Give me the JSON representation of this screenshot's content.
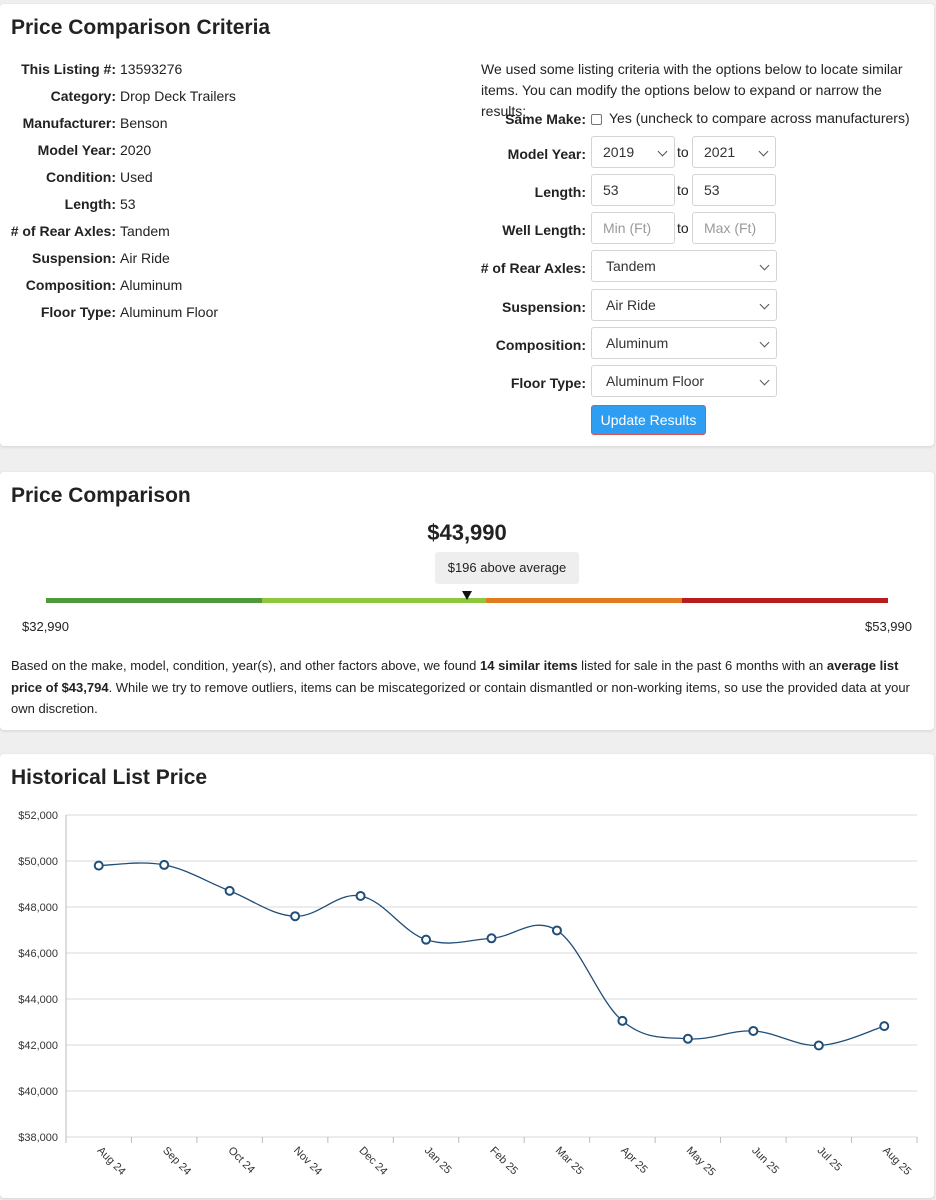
{
  "criteria": {
    "title": "Price Comparison Criteria",
    "specs": [
      {
        "key": "This Listing #:",
        "value": "13593276"
      },
      {
        "key": "Category:",
        "value": "Drop Deck Trailers"
      },
      {
        "key": "Manufacturer:",
        "value": "Benson"
      },
      {
        "key": "Model Year:",
        "value": "2020"
      },
      {
        "key": "Condition:",
        "value": "Used"
      },
      {
        "key": "Length:",
        "value": "53"
      },
      {
        "key": "# of Rear Axles:",
        "value": "Tandem"
      },
      {
        "key": "Suspension:",
        "value": "Air Ride"
      },
      {
        "key": "Composition:",
        "value": "Aluminum"
      },
      {
        "key": "Floor Type:",
        "value": "Aluminum Floor"
      }
    ],
    "intro": "We used some listing criteria with the options below to locate similar items. You can modify the options below to expand or narrow the results:",
    "form": {
      "same_make_label": "Same Make:",
      "same_make_text": "Yes (uncheck to compare across manufacturers)",
      "same_make_checked": false,
      "model_year_label": "Model Year:",
      "model_year_from": "2019",
      "model_year_to": "2021",
      "length_label": "Length:",
      "length_from": "53",
      "length_to": "53",
      "well_length_label": "Well Length:",
      "well_length_min_placeholder": "Min (Ft)",
      "well_length_max_placeholder": "Max (Ft)",
      "rear_axles_label": "# of Rear Axles:",
      "rear_axles_value": "Tandem",
      "suspension_label": "Suspension:",
      "suspension_value": "Air Ride",
      "composition_label": "Composition:",
      "composition_value": "Aluminum",
      "floor_type_label": "Floor Type:",
      "floor_type_value": "Aluminum Floor",
      "to_text": "to",
      "update_button": "Update Results"
    }
  },
  "comparison": {
    "title": "Price Comparison",
    "price": "$43,990",
    "difference": "$196 above average",
    "range_min": "$32,990",
    "range_max": "$53,990",
    "marker_fraction": 0.5,
    "segment_colors": [
      "#4e9a3a",
      "#8dc63f",
      "#e07b20",
      "#b81c1c"
    ],
    "summary_parts": {
      "p1": "Based on the make, model, condition, year(s), and other factors above, we found ",
      "b1": "14 similar items",
      "p2": " listed for sale in the past 6 months with an ",
      "b2": "average list price of $43,794",
      "p3": ". While we try to remove outliers, items can be miscategorized or contain dismantled or non-working items, so use the provided data at your own discretion."
    }
  },
  "history": {
    "title": "Historical List Price"
  },
  "chart_data": {
    "type": "line",
    "title": "Historical List Price",
    "xlabel": "",
    "ylabel": "",
    "categories": [
      "Aug 24",
      "Sep 24",
      "Oct 24",
      "Nov 24",
      "Dec 24",
      "Jan 25",
      "Feb 25",
      "Mar 25",
      "Apr 25",
      "May 25",
      "Jun 25",
      "Jul 25",
      "Aug 25"
    ],
    "values": [
      49800,
      49830,
      48700,
      47600,
      48480,
      46580,
      46640,
      46980,
      43050,
      42270,
      42610,
      41980,
      42820
    ],
    "ylim": [
      38000,
      52000
    ],
    "yticks": [
      "$38,000",
      "$40,000",
      "$42,000",
      "$44,000",
      "$46,000",
      "$48,000",
      "$50,000",
      "$52,000"
    ],
    "grid": true,
    "line_color": "#1f4e79"
  }
}
